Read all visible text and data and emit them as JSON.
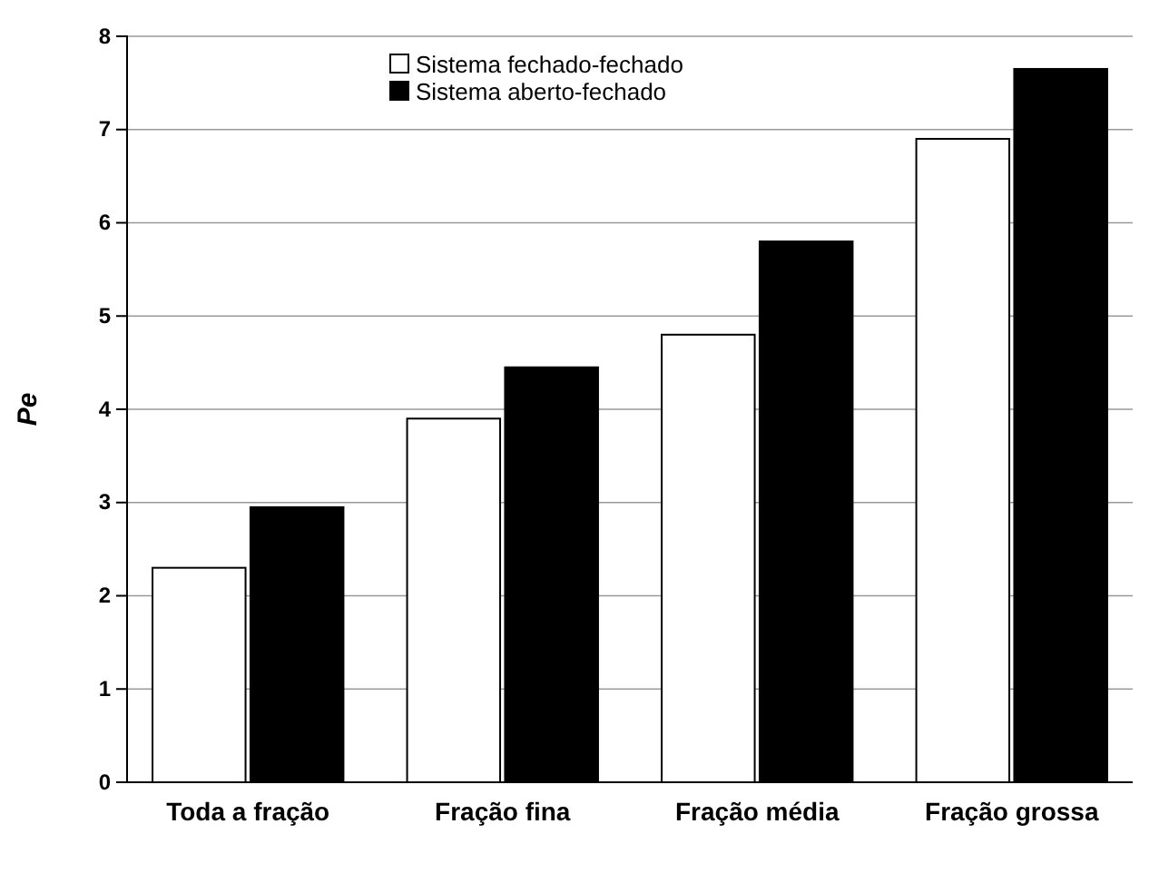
{
  "chart_data": {
    "type": "bar",
    "ylabel": "Pe",
    "categories": [
      "Toda a fração",
      "Fração fina",
      "Fração média",
      "Fração grossa"
    ],
    "series": [
      {
        "name": "Sistema fechado-fechado",
        "color": "#ffffff",
        "values": [
          2.3,
          3.9,
          4.8,
          6.9
        ]
      },
      {
        "name": "Sistema aberto-fechado",
        "color": "#000000",
        "values": [
          2.95,
          4.45,
          5.8,
          7.65
        ]
      }
    ],
    "ylim": [
      0,
      8
    ],
    "yticks": [
      0,
      1,
      2,
      3,
      4,
      5,
      6,
      7,
      8
    ],
    "grid": "y",
    "legend": "top"
  }
}
